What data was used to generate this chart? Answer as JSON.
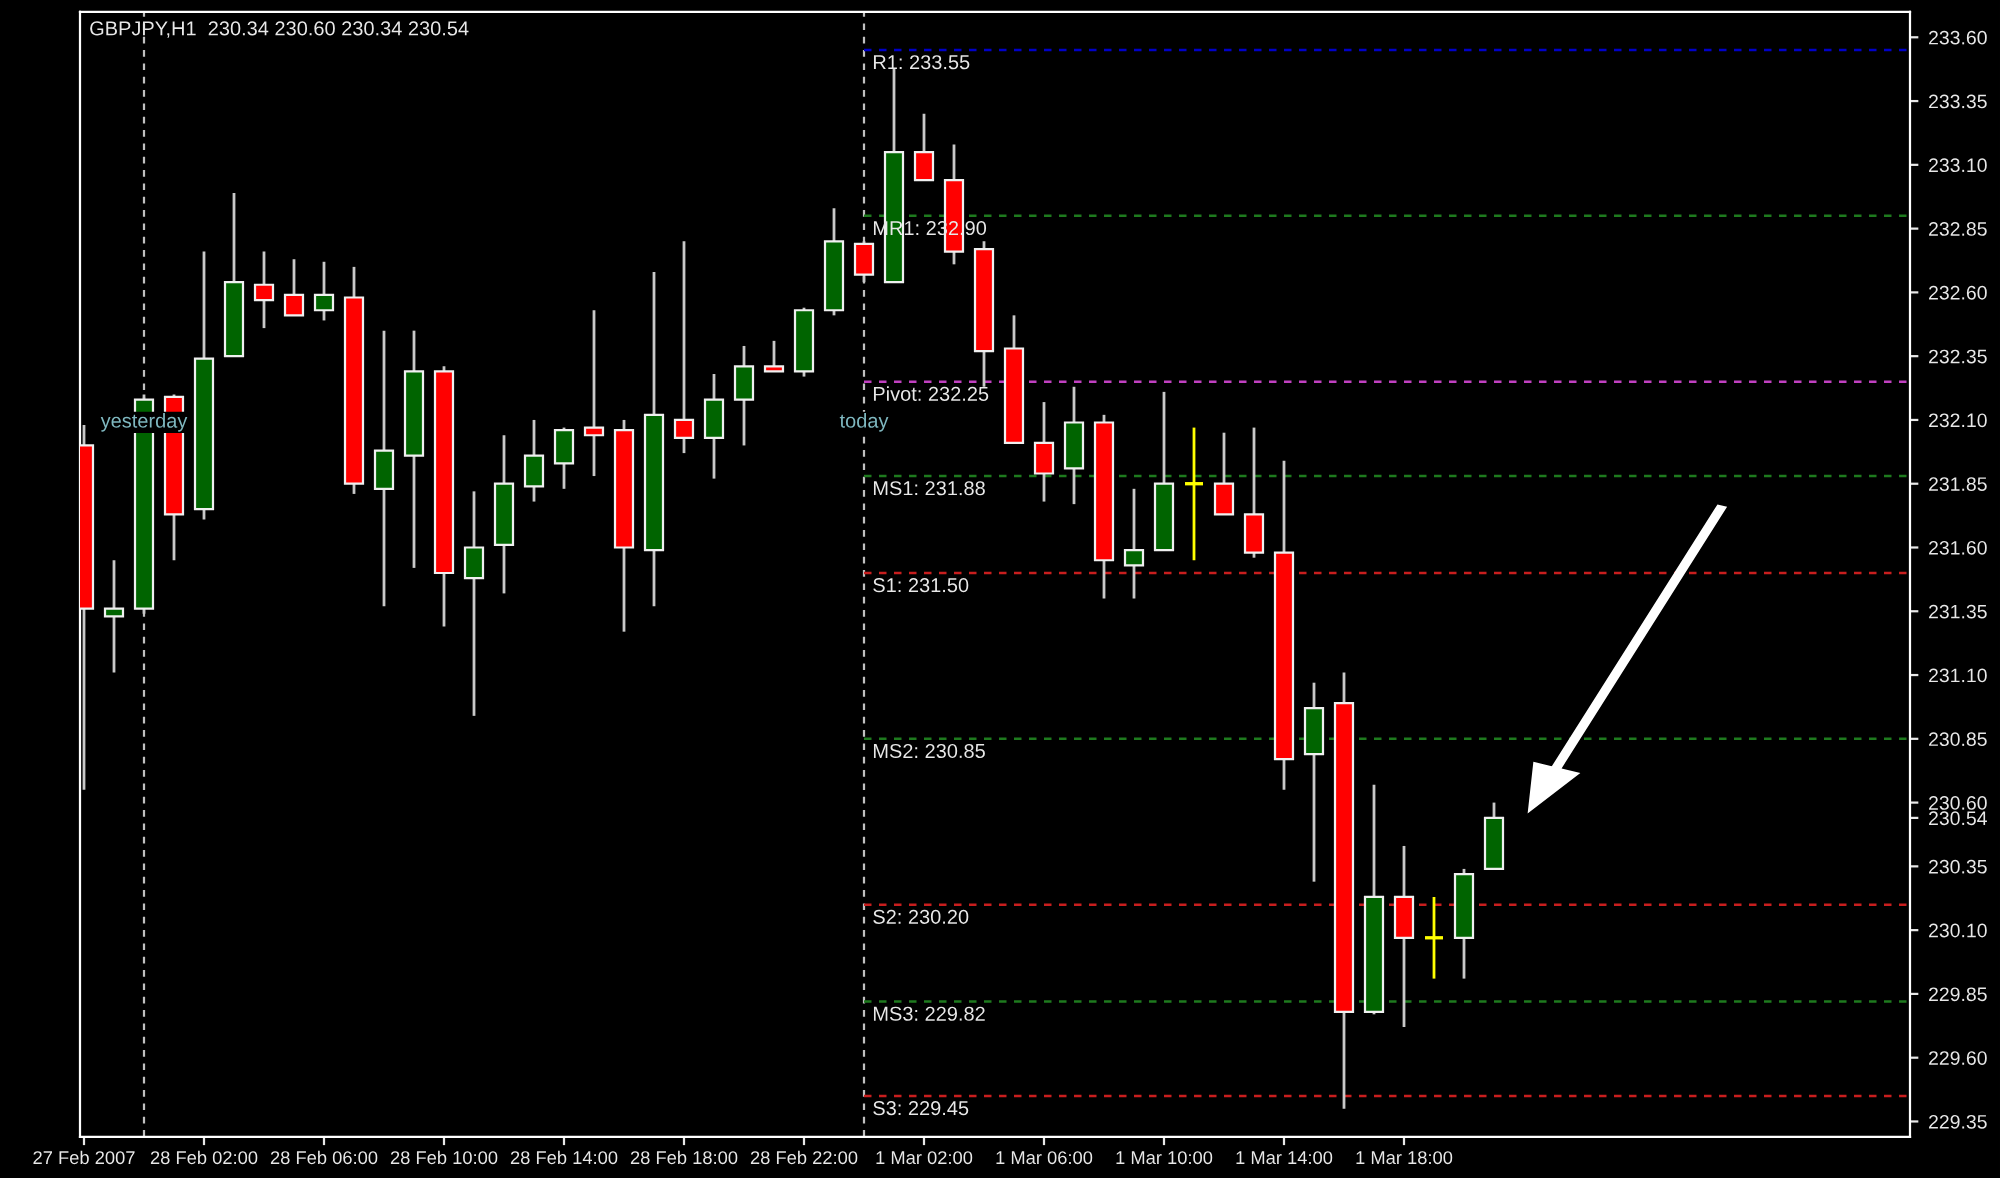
{
  "chart_data": {
    "type": "candlestick",
    "title": "GBPJPY,H1  230.34 230.60 230.34 230.54",
    "x": [
      "2007-02-27T22:00",
      "2007-02-27T23:00",
      "2007-02-28T00:00",
      "2007-02-28T01:00",
      "2007-02-28T02:00",
      "2007-02-28T03:00",
      "2007-02-28T04:00",
      "2007-02-28T05:00",
      "2007-02-28T06:00",
      "2007-02-28T07:00",
      "2007-02-28T08:00",
      "2007-02-28T09:00",
      "2007-02-28T10:00",
      "2007-02-28T11:00",
      "2007-02-28T12:00",
      "2007-02-28T13:00",
      "2007-02-28T14:00",
      "2007-02-28T15:00",
      "2007-02-28T16:00",
      "2007-02-28T17:00",
      "2007-02-28T18:00",
      "2007-02-28T19:00",
      "2007-02-28T20:00",
      "2007-02-28T21:00",
      "2007-02-28T22:00",
      "2007-02-28T23:00",
      "2007-03-01T00:00",
      "2007-03-01T01:00",
      "2007-03-01T02:00",
      "2007-03-01T03:00",
      "2007-03-01T04:00",
      "2007-03-01T05:00",
      "2007-03-01T06:00",
      "2007-03-01T07:00",
      "2007-03-01T08:00",
      "2007-03-01T09:00",
      "2007-03-01T10:00",
      "2007-03-01T11:00",
      "2007-03-01T12:00",
      "2007-03-01T13:00",
      "2007-03-01T14:00",
      "2007-03-01T15:00",
      "2007-03-01T16:00",
      "2007-03-01T17:00",
      "2007-03-01T18:00",
      "2007-03-01T19:00",
      "2007-03-01T20:00",
      "2007-03-01T21:00"
    ],
    "ohlc": [
      [
        232.0,
        232.08,
        230.65,
        231.36
      ],
      [
        231.33,
        231.55,
        231.11,
        231.36
      ],
      [
        231.36,
        232.2,
        231.34,
        232.18
      ],
      [
        232.19,
        232.2,
        231.55,
        231.73
      ],
      [
        231.75,
        232.76,
        231.71,
        232.34
      ],
      [
        232.35,
        232.99,
        232.35,
        232.64
      ],
      [
        232.63,
        232.76,
        232.46,
        232.57
      ],
      [
        232.59,
        232.73,
        232.51,
        232.51
      ],
      [
        232.53,
        232.72,
        232.49,
        232.59
      ],
      [
        232.58,
        232.7,
        231.81,
        231.85
      ],
      [
        231.83,
        232.45,
        231.37,
        231.98
      ],
      [
        231.96,
        232.45,
        231.52,
        232.29
      ],
      [
        232.29,
        232.31,
        231.29,
        231.5
      ],
      [
        231.48,
        231.82,
        230.94,
        231.6
      ],
      [
        231.61,
        232.04,
        231.42,
        231.85
      ],
      [
        231.84,
        232.1,
        231.78,
        231.96
      ],
      [
        231.93,
        232.07,
        231.83,
        232.06
      ],
      [
        232.07,
        232.53,
        231.88,
        232.04
      ],
      [
        232.06,
        232.1,
        231.27,
        231.6
      ],
      [
        231.59,
        232.68,
        231.37,
        232.12
      ],
      [
        232.1,
        232.8,
        231.97,
        232.03
      ],
      [
        232.03,
        232.28,
        231.87,
        232.18
      ],
      [
        232.18,
        232.39,
        232.0,
        232.31
      ],
      [
        232.31,
        232.41,
        232.29,
        232.29
      ],
      [
        232.29,
        232.54,
        232.27,
        232.53
      ],
      [
        232.53,
        232.93,
        232.51,
        232.8
      ],
      [
        232.79,
        232.8,
        232.64,
        232.67
      ],
      [
        232.64,
        233.48,
        232.64,
        233.15
      ],
      [
        233.15,
        233.3,
        233.04,
        233.04
      ],
      [
        233.04,
        233.18,
        232.71,
        232.76
      ],
      [
        232.77,
        232.8,
        232.23,
        232.37
      ],
      [
        232.38,
        232.51,
        232.01,
        232.01
      ],
      [
        232.01,
        232.17,
        231.78,
        231.89
      ],
      [
        231.91,
        232.23,
        231.77,
        232.09
      ],
      [
        232.09,
        232.12,
        231.4,
        231.55
      ],
      [
        231.53,
        231.83,
        231.4,
        231.59
      ],
      [
        231.59,
        232.21,
        231.59,
        231.85
      ],
      [
        231.85,
        232.07,
        231.55,
        231.85
      ],
      [
        231.85,
        232.05,
        231.73,
        231.73
      ],
      [
        231.73,
        232.07,
        231.56,
        231.58
      ],
      [
        231.58,
        231.94,
        230.65,
        230.77
      ],
      [
        230.79,
        231.07,
        230.29,
        230.97
      ],
      [
        230.99,
        231.11,
        229.4,
        229.78
      ],
      [
        229.78,
        230.67,
        229.77,
        230.23
      ],
      [
        230.23,
        230.43,
        229.72,
        230.07
      ],
      [
        230.07,
        230.23,
        229.91,
        230.07
      ],
      [
        230.07,
        230.34,
        229.91,
        230.32
      ],
      [
        230.34,
        230.6,
        230.34,
        230.54
      ]
    ],
    "colors": [
      "#ff0000",
      "#006400",
      "#006400",
      "#ff0000",
      "#006400",
      "#006400",
      "#ff0000",
      "#ff0000",
      "#006400",
      "#ff0000",
      "#006400",
      "#006400",
      "#ff0000",
      "#006400",
      "#006400",
      "#006400",
      "#006400",
      "#ff0000",
      "#ff0000",
      "#006400",
      "#ff0000",
      "#006400",
      "#006400",
      "#ff0000",
      "#006400",
      "#006400",
      "#ff0000",
      "#006400",
      "#ff0000",
      "#ff0000",
      "#ff0000",
      "#ff0000",
      "#ff0000",
      "#006400",
      "#ff0000",
      "#006400",
      "#006400",
      "#ffff00",
      "#ff0000",
      "#ff0000",
      "#ff0000",
      "#006400",
      "#ff0000",
      "#006400",
      "#ff0000",
      "#ffff00",
      "#006400",
      "#006400"
    ],
    "xlim": [
      "2007-02-27T21:52",
      "2007-03-02T10:52"
    ],
    "xticks": [
      {
        "value": "2007-02-27T22:00",
        "label": "27 Feb 2007"
      },
      {
        "value": "2007-02-28T02:00",
        "label": "28 Feb 02:00"
      },
      {
        "value": "2007-02-28T06:00",
        "label": "28 Feb 06:00"
      },
      {
        "value": "2007-02-28T10:00",
        "label": "28 Feb 10:00"
      },
      {
        "value": "2007-02-28T14:00",
        "label": "28 Feb 14:00"
      },
      {
        "value": "2007-02-28T18:00",
        "label": "28 Feb 18:00"
      },
      {
        "value": "2007-02-28T22:00",
        "label": "28 Feb 22:00"
      },
      {
        "value": "2007-03-01T02:00",
        "label": "1 Mar 02:00"
      },
      {
        "value": "2007-03-01T06:00",
        "label": "1 Mar 06:00"
      },
      {
        "value": "2007-03-01T10:00",
        "label": "1 Mar 10:00"
      },
      {
        "value": "2007-03-01T14:00",
        "label": "1 Mar 14:00"
      },
      {
        "value": "2007-03-01T18:00",
        "label": "1 Mar 18:00"
      }
    ],
    "ylim": [
      229.29,
      233.7
    ],
    "yticks": [
      {
        "value": 233.6,
        "label": "233.60"
      },
      {
        "value": 233.35,
        "label": "233.35"
      },
      {
        "value": 233.1,
        "label": "233.10"
      },
      {
        "value": 232.85,
        "label": "232.85"
      },
      {
        "value": 232.6,
        "label": "232.60"
      },
      {
        "value": 232.35,
        "label": "232.35"
      },
      {
        "value": 232.1,
        "label": "232.10"
      },
      {
        "value": 231.85,
        "label": "231.85"
      },
      {
        "value": 231.6,
        "label": "231.60"
      },
      {
        "value": 231.35,
        "label": "231.35"
      },
      {
        "value": 231.1,
        "label": "231.10"
      },
      {
        "value": 230.85,
        "label": "230.85"
      },
      {
        "value": 230.6,
        "label": "230.60"
      },
      {
        "value": 230.54,
        "label": "230.54"
      },
      {
        "value": 230.35,
        "label": "230.35"
      },
      {
        "value": 230.1,
        "label": "230.10"
      },
      {
        "value": 229.85,
        "label": "229.85"
      },
      {
        "value": 229.6,
        "label": "229.60"
      },
      {
        "value": 229.35,
        "label": "229.35"
      }
    ],
    "ref_lines": [
      {
        "axis": "x",
        "value": "2007-02-28T00:00",
        "label": "yesterday",
        "color": "#c0c0c0",
        "line_style": "dashed"
      },
      {
        "axis": "x",
        "value": "2007-03-01T00:00",
        "label": "today",
        "color": "#c0c0c0",
        "line_style": "dashed"
      },
      {
        "axis": "y",
        "value": 233.55,
        "label": "R1: 233.55",
        "color": "#0000c8",
        "line_style": "dashed"
      },
      {
        "axis": "y",
        "value": 232.9,
        "label": "MR1: 232.90",
        "color": "#1e7a1e",
        "line_style": "dashed"
      },
      {
        "axis": "y",
        "value": 232.25,
        "label": "Pivot: 232.25",
        "color": "#c040c0",
        "line_style": "dashed"
      },
      {
        "axis": "y",
        "value": 231.88,
        "label": "MS1: 231.88",
        "color": "#1e7a1e",
        "line_style": "dashed"
      },
      {
        "axis": "y",
        "value": 231.5,
        "label": "S1: 231.50",
        "color": "#c81e1e",
        "line_style": "dashed"
      },
      {
        "axis": "y",
        "value": 230.85,
        "label": "MS2: 230.85",
        "color": "#1e7a1e",
        "line_style": "dashed"
      },
      {
        "axis": "y",
        "value": 230.2,
        "label": "S2: 230.20",
        "color": "#c81e1e",
        "line_style": "dashed"
      },
      {
        "axis": "y",
        "value": 229.82,
        "label": "MS3: 229.82",
        "color": "#1e7a1e",
        "line_style": "dashed"
      },
      {
        "axis": "y",
        "value": 229.45,
        "label": "S3: 229.45",
        "color": "#c81e1e",
        "line_style": "dashed"
      }
    ],
    "grid": false
  }
}
